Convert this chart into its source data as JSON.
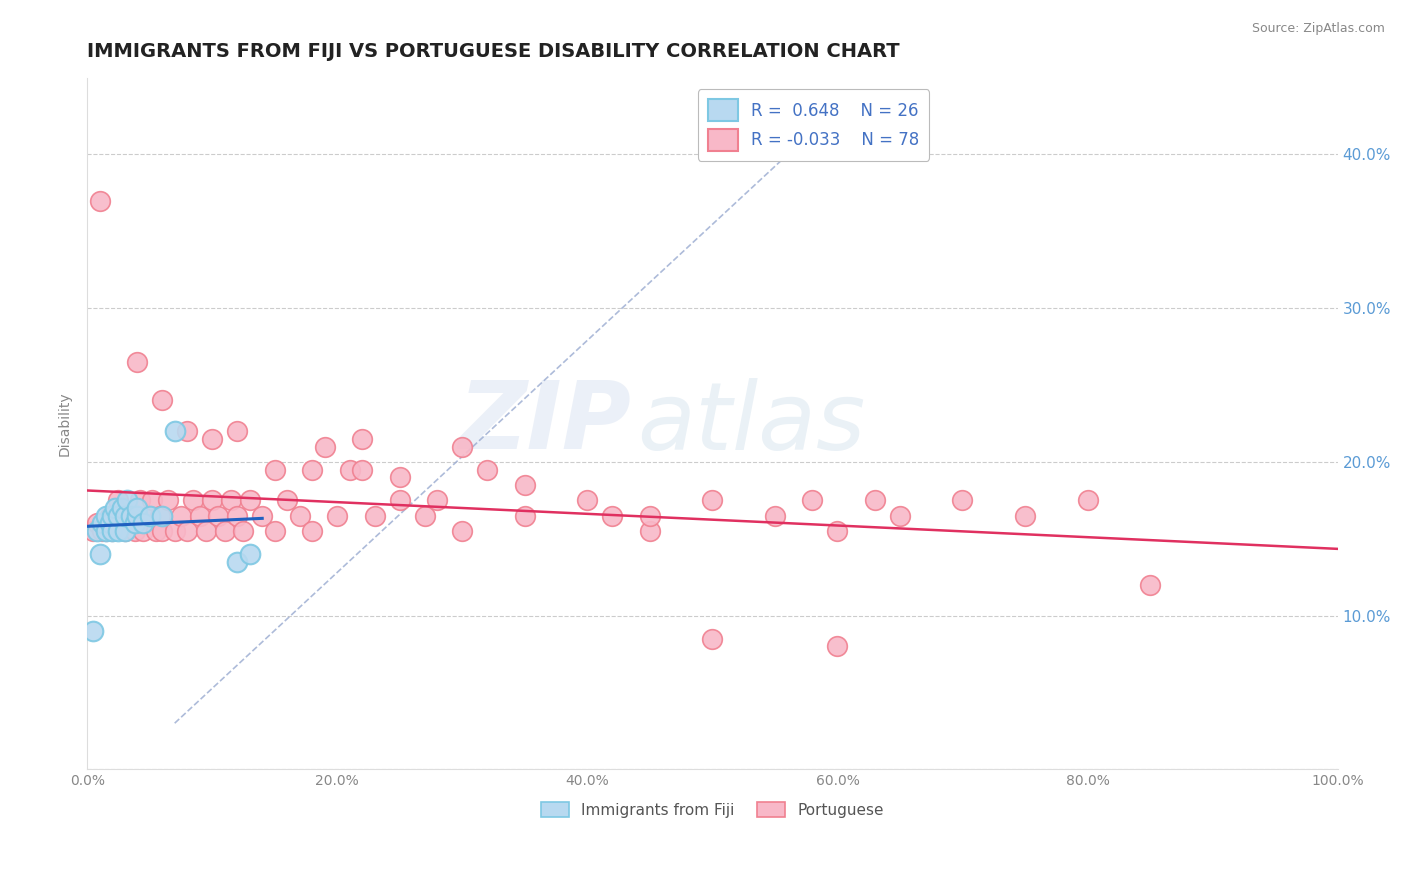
{
  "title": "IMMIGRANTS FROM FIJI VS PORTUGUESE DISABILITY CORRELATION CHART",
  "source": "Source: ZipAtlas.com",
  "ylabel": "Disability",
  "xlim": [
    0.0,
    1.0
  ],
  "ylim": [
    0.0,
    0.45
  ],
  "x_ticks": [
    0.0,
    0.2,
    0.4,
    0.6,
    0.8,
    1.0
  ],
  "x_tick_labels": [
    "0.0%",
    "20.0%",
    "40.0%",
    "60.0%",
    "80.0%",
    "100.0%"
  ],
  "y_ticks": [
    0.0,
    0.1,
    0.2,
    0.3,
    0.4
  ],
  "y_tick_labels": [
    "",
    "10.0%",
    "20.0%",
    "30.0%",
    "40.0%"
  ],
  "fiji_R": 0.648,
  "fiji_N": 26,
  "port_R": -0.033,
  "port_N": 78,
  "fiji_color": "#7ec8e3",
  "fiji_face": "#b8d9f0",
  "port_color": "#f08090",
  "port_face": "#f8b8c8",
  "legend_box_fiji": "#b8d9f0",
  "legend_box_port": "#f8b8c8",
  "fiji_scatter_x": [
    0.005,
    0.008,
    0.01,
    0.012,
    0.015,
    0.015,
    0.018,
    0.02,
    0.02,
    0.022,
    0.025,
    0.025,
    0.028,
    0.03,
    0.03,
    0.032,
    0.035,
    0.038,
    0.04,
    0.04,
    0.045,
    0.05,
    0.06,
    0.07,
    0.12,
    0.13
  ],
  "fiji_scatter_y": [
    0.09,
    0.155,
    0.14,
    0.16,
    0.155,
    0.165,
    0.16,
    0.155,
    0.165,
    0.17,
    0.155,
    0.165,
    0.17,
    0.155,
    0.165,
    0.175,
    0.165,
    0.16,
    0.165,
    0.17,
    0.16,
    0.165,
    0.165,
    0.22,
    0.135,
    0.14
  ],
  "port_scatter_x": [
    0.005,
    0.008,
    0.01,
    0.012,
    0.015,
    0.018,
    0.02,
    0.022,
    0.025,
    0.03,
    0.032,
    0.035,
    0.038,
    0.04,
    0.042,
    0.045,
    0.05,
    0.052,
    0.055,
    0.058,
    0.06,
    0.065,
    0.07,
    0.075,
    0.08,
    0.085,
    0.09,
    0.095,
    0.1,
    0.105,
    0.11,
    0.115,
    0.12,
    0.125,
    0.13,
    0.14,
    0.15,
    0.16,
    0.17,
    0.18,
    0.19,
    0.2,
    0.21,
    0.22,
    0.23,
    0.25,
    0.27,
    0.28,
    0.3,
    0.32,
    0.35,
    0.4,
    0.42,
    0.45,
    0.5,
    0.55,
    0.58,
    0.6,
    0.63,
    0.65,
    0.7,
    0.75,
    0.8,
    0.85,
    0.04,
    0.06,
    0.08,
    0.1,
    0.12,
    0.15,
    0.18,
    0.22,
    0.25,
    0.3,
    0.35,
    0.5,
    0.6,
    0.45
  ],
  "port_scatter_y": [
    0.155,
    0.16,
    0.37,
    0.155,
    0.155,
    0.165,
    0.155,
    0.165,
    0.175,
    0.155,
    0.165,
    0.16,
    0.155,
    0.165,
    0.175,
    0.155,
    0.165,
    0.175,
    0.155,
    0.165,
    0.155,
    0.175,
    0.155,
    0.165,
    0.155,
    0.175,
    0.165,
    0.155,
    0.175,
    0.165,
    0.155,
    0.175,
    0.165,
    0.155,
    0.175,
    0.165,
    0.155,
    0.175,
    0.165,
    0.155,
    0.21,
    0.165,
    0.195,
    0.195,
    0.165,
    0.175,
    0.165,
    0.175,
    0.155,
    0.195,
    0.165,
    0.175,
    0.165,
    0.155,
    0.175,
    0.165,
    0.175,
    0.155,
    0.175,
    0.165,
    0.175,
    0.165,
    0.175,
    0.12,
    0.265,
    0.24,
    0.22,
    0.215,
    0.22,
    0.195,
    0.195,
    0.215,
    0.19,
    0.21,
    0.185,
    0.085,
    0.08,
    0.165
  ],
  "watermark_zip": "ZIP",
  "watermark_atlas": "atlas",
  "title_color": "#222222",
  "axis_color": "#888888",
  "grid_color": "#cccccc",
  "right_tick_color": "#5b9bd5",
  "fiji_line_color": "#2060c0",
  "port_line_color": "#e03060",
  "dashed_line_color": "#99aad0",
  "title_fontsize": 14,
  "axis_label_fontsize": 10,
  "tick_fontsize": 10,
  "legend_text_color": "#4472c4"
}
